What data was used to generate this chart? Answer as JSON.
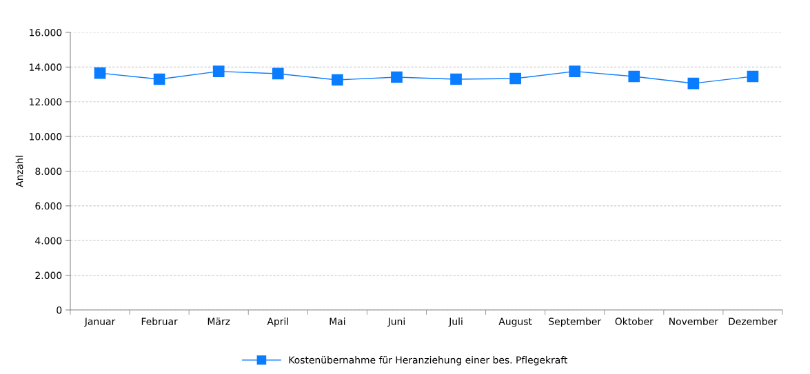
{
  "chart_data": {
    "type": "line",
    "ylabel": "Anzahl",
    "categories": [
      "Januar",
      "Februar",
      "März",
      "April",
      "Mai",
      "Juni",
      "Juli",
      "August",
      "September",
      "Oktober",
      "November",
      "Dezember"
    ],
    "series": [
      {
        "name": "Kostenübernahme für Heranziehung einer bes. Pflegekraft",
        "color": "#0a7cff",
        "values": [
          13650,
          13300,
          13750,
          13620,
          13260,
          13420,
          13300,
          13340,
          13750,
          13460,
          13060,
          13460
        ]
      }
    ],
    "ylim": [
      0,
      16000
    ],
    "yticks": [
      0,
      {
        "value": 2000,
        "label": "2.000"
      },
      {
        "value": 4000,
        "label": "4.000"
      },
      {
        "value": 6000,
        "label": "6.000"
      },
      {
        "value": 8000,
        "label": "8.000"
      },
      {
        "value": 10000,
        "label": "10.000"
      },
      {
        "value": 12000,
        "label": "12.000"
      },
      {
        "value": 14000,
        "label": "14.000"
      },
      {
        "value": 16000,
        "label": "16.000"
      }
    ],
    "grid": "y",
    "legend": "bottom",
    "marker": "square",
    "line_style": "solid"
  }
}
